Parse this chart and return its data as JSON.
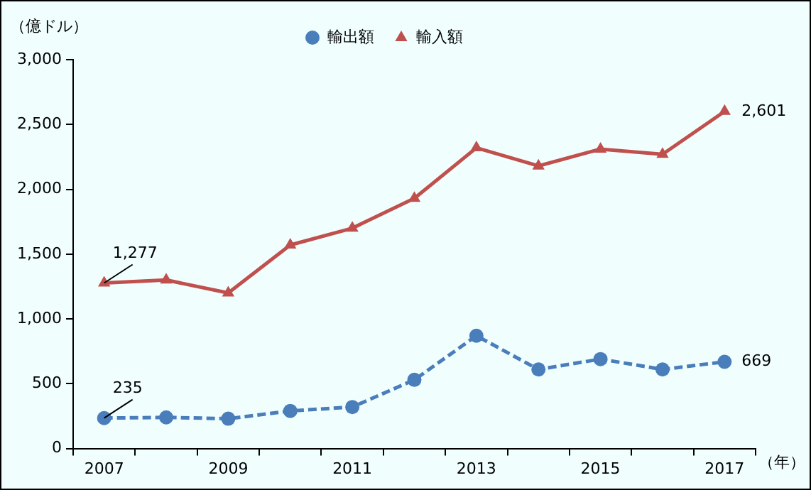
{
  "chart_data": {
    "type": "line",
    "ylabel": "（億ドル）",
    "xlabel": "（年）",
    "categories": [
      "2007",
      null,
      "2009",
      null,
      "2011",
      null,
      "2013",
      null,
      "2015",
      null,
      "2017"
    ],
    "series": [
      {
        "name": "輸出額",
        "color": "#4a7ebb",
        "marker": "circle",
        "line_style": "dashed",
        "values": [
          235,
          240,
          230,
          290,
          320,
          530,
          870,
          610,
          690,
          610,
          669
        ],
        "value_labels": [
          "235",
          null,
          null,
          null,
          null,
          null,
          null,
          null,
          null,
          null,
          "669"
        ]
      },
      {
        "name": "輸入額",
        "color": "#c0504d",
        "marker": "triangle",
        "line_style": "solid",
        "values": [
          1277,
          1300,
          1200,
          1570,
          1700,
          1930,
          2320,
          2180,
          2310,
          2270,
          2601
        ],
        "value_labels": [
          "1,277",
          null,
          null,
          null,
          null,
          null,
          null,
          null,
          null,
          null,
          "2,601"
        ]
      }
    ],
    "ylim": [
      0,
      3000
    ],
    "yticks": [
      {
        "value": 0,
        "label": "0"
      },
      {
        "value": 500,
        "label": "500"
      },
      {
        "value": 1000,
        "label": "1,000"
      },
      {
        "value": 1500,
        "label": "1,500"
      },
      {
        "value": 2000,
        "label": "2,000"
      },
      {
        "value": 2500,
        "label": "2,500"
      },
      {
        "value": 3000,
        "label": "3,000"
      }
    ],
    "grid": false,
    "legend": "top"
  }
}
